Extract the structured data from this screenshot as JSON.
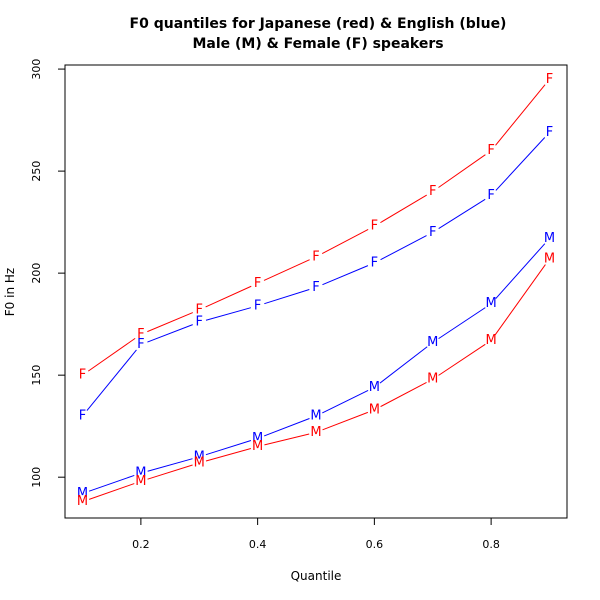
{
  "chart_data": {
    "type": "line",
    "title_lines": [
      "F0 quantiles for Japanese (red) & English (blue)",
      "Male (M) & Female (F) speakers"
    ],
    "xlabel": "Quantile",
    "ylabel": "F0 in Hz",
    "xlim": [
      0.07,
      0.93
    ],
    "ylim": [
      80,
      302
    ],
    "xticks": [
      0.2,
      0.4,
      0.6,
      0.8
    ],
    "yticks": [
      100,
      150,
      200,
      250,
      300
    ],
    "grid": false,
    "x": [
      0.1,
      0.2,
      0.3,
      0.4,
      0.5,
      0.6,
      0.7,
      0.8,
      0.9
    ],
    "series": [
      {
        "symbol": "F",
        "color": "#ff0000",
        "values": [
          150,
          170,
          182,
          195,
          208,
          223,
          240,
          260,
          295
        ]
      },
      {
        "symbol": "F",
        "color": "#0000ff",
        "values": [
          130,
          165,
          176,
          184,
          193,
          205,
          220,
          238,
          269
        ]
      },
      {
        "symbol": "M",
        "color": "#0000ff",
        "values": [
          92,
          102,
          110,
          119,
          130,
          144,
          166,
          185,
          217
        ]
      },
      {
        "symbol": "M",
        "color": "#ff0000",
        "values": [
          88,
          98,
          107,
          115,
          122,
          133,
          148,
          167,
          207
        ]
      }
    ]
  }
}
